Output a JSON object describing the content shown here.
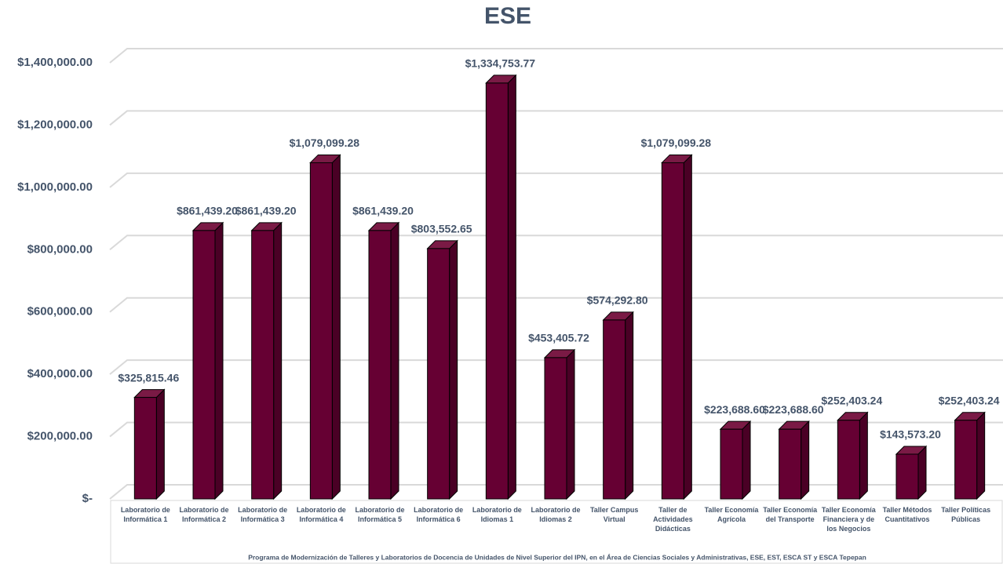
{
  "chart_data": {
    "type": "bar3d",
    "title": "ESE",
    "x_label": "Programa de Modernización de Talleres y Laboratorios de Docencia de Unidades de Nivel Superior del IPN, en el Área de Ciencias Sociales y Administrativas, ESE, EST, ESCA ST y ESCA Tepepan",
    "categories": [
      "Laboratorio de Informática 1",
      "Laboratorio de Informática 2",
      "Laboratorio de Informática 3",
      "Laboratorio de Informática 4",
      "Laboratorio de Informática 5",
      "Laboratorio de Informática 6",
      "Laboratorio de Idiomas 1",
      "Laboratorio de Idiomas 2",
      "Taller Campus Virtual",
      "Taller de Actividades Didácticas",
      "Taller Economía Agrícola",
      "Taller Economía del Transporte",
      "Taller Economía Financiera y de los Negocios",
      "Taller Métodos Cuantitativos",
      "Taller Políticas Públicas"
    ],
    "values": [
      325815.46,
      861439.2,
      861439.2,
      1079099.28,
      861439.2,
      803552.65,
      1334753.77,
      453405.72,
      574292.8,
      1079099.28,
      223688.6,
      223688.6,
      252403.24,
      143573.2,
      252403.24
    ],
    "value_labels": [
      "$325,815.46",
      "$861,439.20",
      "$861,439.20",
      "$1,079,099.28",
      "$861,439.20",
      "$803,552.65",
      "$1,334,753.77",
      "$453,405.72",
      "$574,292.80",
      "$1,079,099.28",
      "$223,688.60",
      "$223,688.60",
      "$252,403.24",
      "$143,573.20",
      "$252,403.24"
    ],
    "color": "#660033",
    "ylim": [
      0,
      1400000
    ],
    "yticks": [
      {
        "value": 0,
        "label": "$-"
      },
      {
        "value": 200000,
        "label": "$200,000.00"
      },
      {
        "value": 400000,
        "label": "$400,000.00"
      },
      {
        "value": 600000,
        "label": "$600,000.00"
      },
      {
        "value": 800000,
        "label": "$800,000.00"
      },
      {
        "value": 1000000,
        "label": "$1,000,000.00"
      },
      {
        "value": 1200000,
        "label": "$1,200,000.00"
      },
      {
        "value": 1400000,
        "label": "$1,400,000.00"
      }
    ],
    "grid": true
  }
}
